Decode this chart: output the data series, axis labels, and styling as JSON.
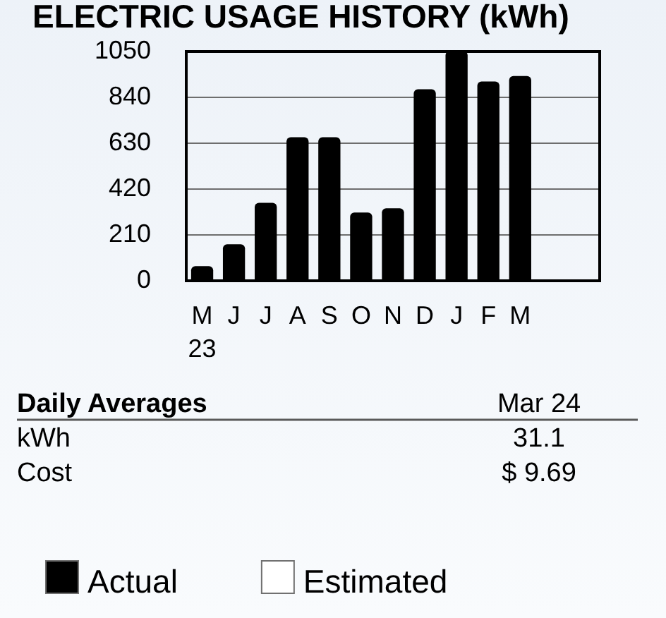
{
  "chart_data": {
    "type": "bar",
    "title": "ELECTRIC USAGE HISTORY (kWh)",
    "categories": [
      "M\n23",
      "J",
      "J",
      "A",
      "S",
      "O",
      "N",
      "D",
      "J",
      "F",
      "M",
      null,
      null
    ],
    "series": [
      {
        "name": "Actual",
        "color": "#000000",
        "values": [
          65,
          165,
          355,
          655,
          655,
          310,
          330,
          875,
          1050,
          910,
          935,
          null,
          null
        ]
      },
      {
        "name": "Estimated",
        "color": "#ffffff",
        "values": [
          null,
          null,
          null,
          null,
          null,
          null,
          null,
          null,
          null,
          null,
          null,
          null,
          null
        ]
      }
    ],
    "ylim": [
      0,
      1050
    ],
    "yticks": [
      0,
      210,
      420,
      630,
      840,
      1050
    ],
    "grid": "y",
    "legend": "bottom left",
    "annotations": [
      "Daily Averages",
      "Mar 24",
      "kWh",
      "31.1",
      "Cost",
      "$ 9.69"
    ]
  }
}
